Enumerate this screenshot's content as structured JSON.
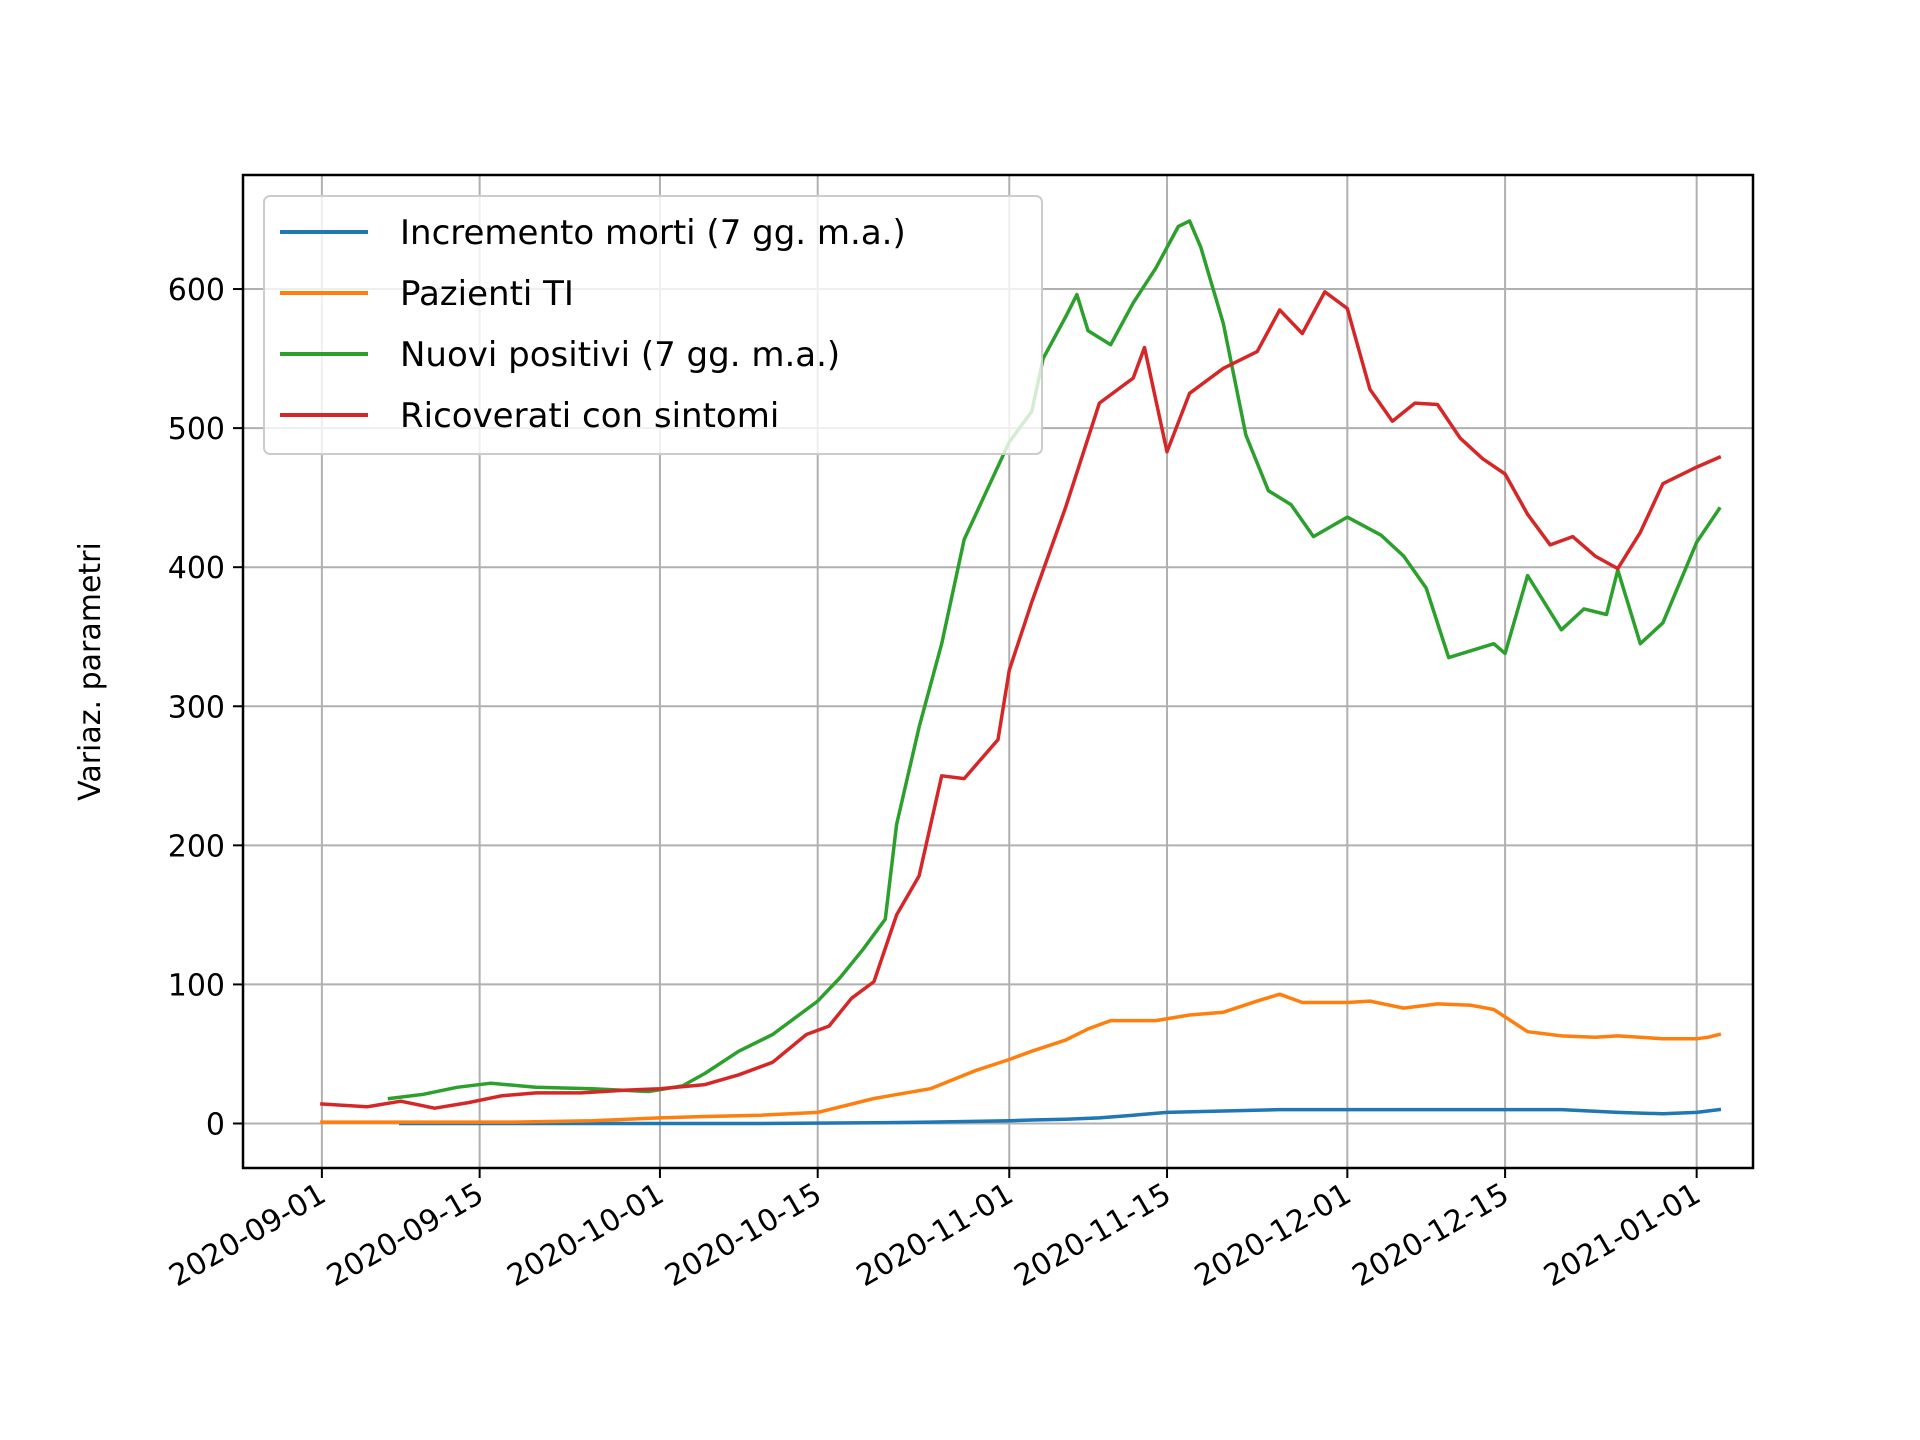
{
  "chart_data": {
    "type": "line",
    "ylabel": "Variaz. parametri",
    "xlim": [
      "2020-08-25",
      "2021-01-06"
    ],
    "ylim": [
      -32,
      682
    ],
    "grid": true,
    "legend_position": "top-left",
    "x_ticks": [
      "2020-09-01",
      "2020-09-15",
      "2020-10-01",
      "2020-10-15",
      "2020-11-01",
      "2020-11-15",
      "2020-12-01",
      "2020-12-15",
      "2021-01-01"
    ],
    "y_ticks": [
      0,
      100,
      200,
      300,
      400,
      500,
      600
    ],
    "series": [
      {
        "name": "Incremento morti (7 gg. m.a.)",
        "color": "#1f77b4",
        "points": [
          [
            "2020-09-08",
            0
          ],
          [
            "2020-09-25",
            0
          ],
          [
            "2020-10-10",
            0
          ],
          [
            "2020-10-20",
            0.5
          ],
          [
            "2020-10-25",
            1
          ],
          [
            "2020-11-01",
            2
          ],
          [
            "2020-11-03",
            2.5
          ],
          [
            "2020-11-06",
            3
          ],
          [
            "2020-11-09",
            4
          ],
          [
            "2020-11-12",
            6
          ],
          [
            "2020-11-15",
            8
          ],
          [
            "2020-11-20",
            9
          ],
          [
            "2020-11-25",
            10
          ],
          [
            "2020-12-01",
            10
          ],
          [
            "2020-12-05",
            10
          ],
          [
            "2020-12-10",
            10
          ],
          [
            "2020-12-15",
            10
          ],
          [
            "2020-12-20",
            10
          ],
          [
            "2020-12-25",
            8
          ],
          [
            "2020-12-29",
            7
          ],
          [
            "2021-01-01",
            8
          ],
          [
            "2021-01-03",
            10
          ]
        ]
      },
      {
        "name": "Pazienti TI",
        "color": "#ff7f0e",
        "points": [
          [
            "2020-09-01",
            1
          ],
          [
            "2020-09-10",
            1
          ],
          [
            "2020-09-18",
            1
          ],
          [
            "2020-09-25",
            2
          ],
          [
            "2020-10-01",
            4
          ],
          [
            "2020-10-05",
            5
          ],
          [
            "2020-10-10",
            6
          ],
          [
            "2020-10-15",
            8
          ],
          [
            "2020-10-20",
            18
          ],
          [
            "2020-10-25",
            25
          ],
          [
            "2020-10-29",
            38
          ],
          [
            "2020-11-01",
            46
          ],
          [
            "2020-11-03",
            52
          ],
          [
            "2020-11-06",
            60
          ],
          [
            "2020-11-08",
            68
          ],
          [
            "2020-11-10",
            74
          ],
          [
            "2020-11-14",
            74
          ],
          [
            "2020-11-17",
            78
          ],
          [
            "2020-11-20",
            80
          ],
          [
            "2020-11-23",
            88
          ],
          [
            "2020-11-25",
            93
          ],
          [
            "2020-11-27",
            87
          ],
          [
            "2020-12-01",
            87
          ],
          [
            "2020-12-03",
            88
          ],
          [
            "2020-12-06",
            83
          ],
          [
            "2020-12-09",
            86
          ],
          [
            "2020-12-12",
            85
          ],
          [
            "2020-12-14",
            82
          ],
          [
            "2020-12-17",
            66
          ],
          [
            "2020-12-20",
            63
          ],
          [
            "2020-12-23",
            62
          ],
          [
            "2020-12-25",
            63
          ],
          [
            "2020-12-27",
            62
          ],
          [
            "2020-12-29",
            61
          ],
          [
            "2021-01-01",
            61
          ],
          [
            "2021-01-02",
            62
          ],
          [
            "2021-01-03",
            64
          ]
        ]
      },
      {
        "name": "Nuovi positivi (7 gg. m.a.)",
        "color": "#2ca02c",
        "points": [
          [
            "2020-09-07",
            18
          ],
          [
            "2020-09-10",
            21
          ],
          [
            "2020-09-13",
            26
          ],
          [
            "2020-09-16",
            29
          ],
          [
            "2020-09-20",
            26
          ],
          [
            "2020-09-25",
            25
          ],
          [
            "2020-09-30",
            23
          ],
          [
            "2020-10-03",
            27
          ],
          [
            "2020-10-05",
            36
          ],
          [
            "2020-10-08",
            52
          ],
          [
            "2020-10-11",
            64
          ],
          [
            "2020-10-15",
            88
          ],
          [
            "2020-10-17",
            105
          ],
          [
            "2020-10-19",
            125
          ],
          [
            "2020-10-21",
            147
          ],
          [
            "2020-10-22",
            215
          ],
          [
            "2020-10-24",
            285
          ],
          [
            "2020-10-26",
            345
          ],
          [
            "2020-10-28",
            420
          ],
          [
            "2020-10-30",
            455
          ],
          [
            "2020-11-01",
            490
          ],
          [
            "2020-11-03",
            512
          ],
          [
            "2020-11-04",
            550
          ],
          [
            "2020-11-06",
            580
          ],
          [
            "2020-11-07",
            596
          ],
          [
            "2020-11-08",
            570
          ],
          [
            "2020-11-10",
            560
          ],
          [
            "2020-11-12",
            590
          ],
          [
            "2020-11-14",
            615
          ],
          [
            "2020-11-16",
            645
          ],
          [
            "2020-11-17",
            649
          ],
          [
            "2020-11-18",
            630
          ],
          [
            "2020-11-20",
            575
          ],
          [
            "2020-11-22",
            495
          ],
          [
            "2020-11-24",
            455
          ],
          [
            "2020-11-26",
            445
          ],
          [
            "2020-11-28",
            422
          ],
          [
            "2020-12-01",
            436
          ],
          [
            "2020-12-04",
            423
          ],
          [
            "2020-12-06",
            408
          ],
          [
            "2020-12-08",
            385
          ],
          [
            "2020-12-10",
            335
          ],
          [
            "2020-12-14",
            345
          ],
          [
            "2020-12-15",
            338
          ],
          [
            "2020-12-17",
            394
          ],
          [
            "2020-12-20",
            355
          ],
          [
            "2020-12-22",
            370
          ],
          [
            "2020-12-24",
            366
          ],
          [
            "2020-12-25",
            398
          ],
          [
            "2020-12-27",
            345
          ],
          [
            "2020-12-29",
            360
          ],
          [
            "2021-01-01",
            418
          ],
          [
            "2021-01-03",
            442
          ]
        ]
      },
      {
        "name": "Ricoverati con sintomi",
        "color": "#d62728",
        "points": [
          [
            "2020-09-01",
            14
          ],
          [
            "2020-09-05",
            12
          ],
          [
            "2020-09-08",
            16
          ],
          [
            "2020-09-11",
            11
          ],
          [
            "2020-09-14",
            15
          ],
          [
            "2020-09-17",
            20
          ],
          [
            "2020-09-20",
            22
          ],
          [
            "2020-09-24",
            22
          ],
          [
            "2020-09-28",
            24
          ],
          [
            "2020-10-01",
            25
          ],
          [
            "2020-10-05",
            28
          ],
          [
            "2020-10-08",
            35
          ],
          [
            "2020-10-11",
            44
          ],
          [
            "2020-10-14",
            64
          ],
          [
            "2020-10-16",
            70
          ],
          [
            "2020-10-18",
            90
          ],
          [
            "2020-10-20",
            102
          ],
          [
            "2020-10-22",
            150
          ],
          [
            "2020-10-24",
            178
          ],
          [
            "2020-10-26",
            250
          ],
          [
            "2020-10-28",
            248
          ],
          [
            "2020-10-31",
            276
          ],
          [
            "2020-11-01",
            326
          ],
          [
            "2020-11-03",
            375
          ],
          [
            "2020-11-06",
            443
          ],
          [
            "2020-11-09",
            518
          ],
          [
            "2020-11-12",
            536
          ],
          [
            "2020-11-13",
            558
          ],
          [
            "2020-11-15",
            483
          ],
          [
            "2020-11-17",
            525
          ],
          [
            "2020-11-20",
            543
          ],
          [
            "2020-11-23",
            555
          ],
          [
            "2020-11-25",
            585
          ],
          [
            "2020-11-27",
            568
          ],
          [
            "2020-11-29",
            598
          ],
          [
            "2020-12-01",
            586
          ],
          [
            "2020-12-03",
            528
          ],
          [
            "2020-12-05",
            505
          ],
          [
            "2020-12-07",
            518
          ],
          [
            "2020-12-09",
            517
          ],
          [
            "2020-12-11",
            493
          ],
          [
            "2020-12-13",
            478
          ],
          [
            "2020-12-15",
            467
          ],
          [
            "2020-12-17",
            438
          ],
          [
            "2020-12-19",
            416
          ],
          [
            "2020-12-21",
            422
          ],
          [
            "2020-12-23",
            408
          ],
          [
            "2020-12-25",
            399
          ],
          [
            "2020-12-27",
            425
          ],
          [
            "2020-12-29",
            460
          ],
          [
            "2021-01-01",
            472
          ],
          [
            "2021-01-03",
            479
          ]
        ]
      }
    ]
  }
}
